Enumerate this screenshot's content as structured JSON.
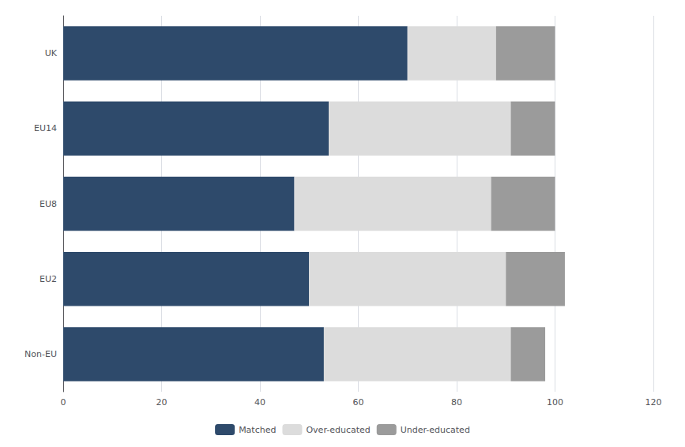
{
  "chart_data": {
    "type": "bar",
    "orientation": "horizontal",
    "stacked": true,
    "categories": [
      "Non-EU",
      "EU2",
      "EU8",
      "EU14",
      "UK"
    ],
    "series": [
      {
        "name": "Matched",
        "color": "#2E4A6B",
        "values": [
          53,
          50,
          47,
          54,
          70
        ]
      },
      {
        "name": "Over-educated",
        "color": "#DCDCDC",
        "values": [
          38,
          40,
          40,
          37,
          18
        ]
      },
      {
        "name": "Under-educated",
        "color": "#9B9B9B",
        "values": [
          7,
          12,
          13,
          9,
          12
        ]
      }
    ],
    "xlim": [
      0,
      120
    ],
    "xticks": [
      0,
      20,
      40,
      60,
      80,
      100,
      120
    ],
    "grid": true,
    "legend": "bottom"
  }
}
